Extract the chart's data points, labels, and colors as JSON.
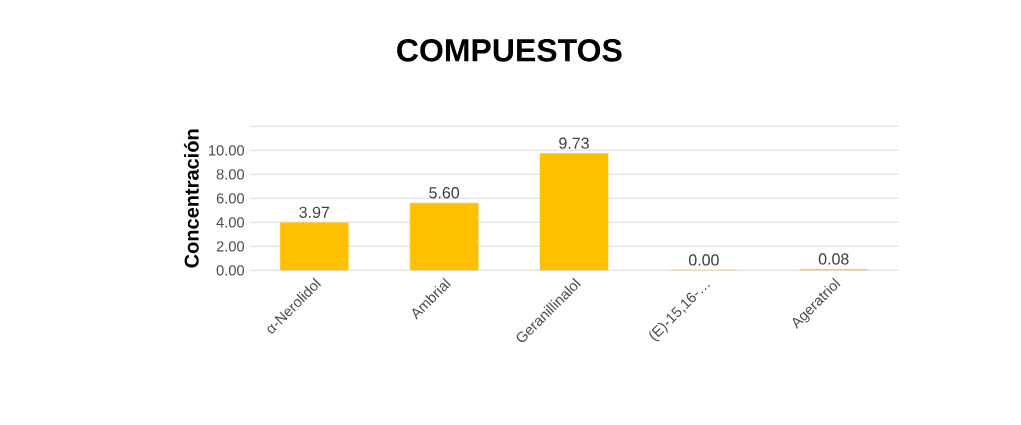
{
  "chart_data": {
    "type": "bar",
    "title": "COMPUESTOS",
    "ylabel": "Concentración",
    "categories": [
      "α-Nerolidol",
      "Ambrial",
      "Geranillinalol",
      "(E)-15,16-…",
      "Ageratriol"
    ],
    "values": [
      3.97,
      5.6,
      9.73,
      0.0,
      0.08
    ],
    "value_labels": [
      "3.97",
      "5.60",
      "9.73",
      "0.00",
      "0.08"
    ],
    "color": "#ffc000",
    "ylim": [
      0,
      12
    ],
    "yticks": [
      {
        "value": 0,
        "label": "0.00"
      },
      {
        "value": 2,
        "label": "2.00"
      },
      {
        "value": 4,
        "label": "4.00"
      },
      {
        "value": 6,
        "label": "6.00"
      },
      {
        "value": 8,
        "label": "8.00"
      },
      {
        "value": 10,
        "label": "10.00"
      },
      {
        "value": 12,
        "label": null
      }
    ],
    "grid": "y"
  }
}
